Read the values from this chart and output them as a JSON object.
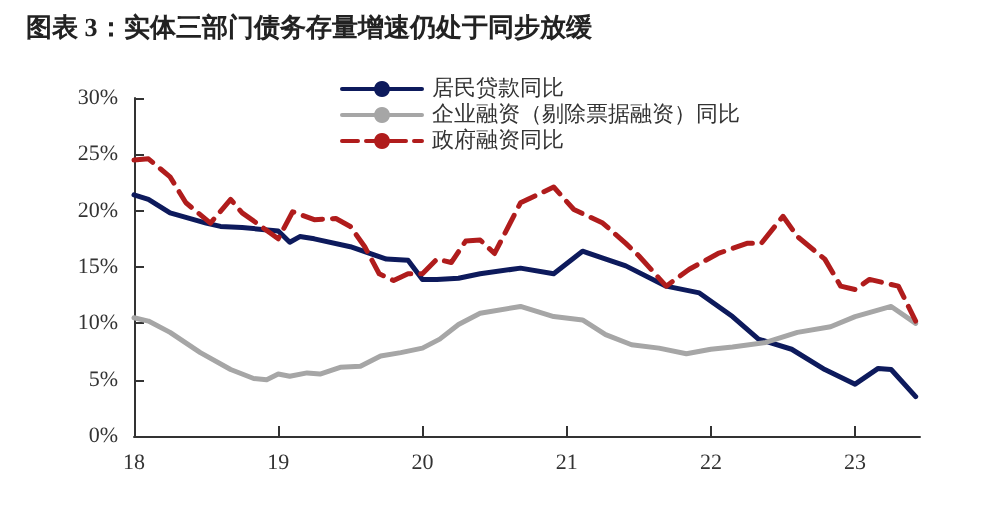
{
  "chart_data": {
    "type": "line",
    "title": "图表 3：实体三部门债务存量增速仍处于同步放缓",
    "xlim": [
      18,
      23.45
    ],
    "xticks": [
      18,
      19,
      20,
      21,
      22,
      23
    ],
    "ylim": [
      0,
      30
    ],
    "yticks": [
      {
        "value": 0,
        "label": "0%"
      },
      {
        "value": 5,
        "label": "5%"
      },
      {
        "value": 10,
        "label": "10%"
      },
      {
        "value": 15,
        "label": "15%"
      },
      {
        "value": 20,
        "label": "20%"
      },
      {
        "value": 25,
        "label": "25%"
      },
      {
        "value": 30,
        "label": "30%"
      }
    ],
    "grid": false,
    "legend": "top",
    "marker": "none",
    "series": [
      {
        "name": "居民贷款同比",
        "color": "#0d1a5c",
        "line_style": "solid",
        "x": [
          18,
          18.1,
          18.25,
          18.5,
          18.6,
          18.75,
          19,
          19.08,
          19.15,
          19.25,
          19.5,
          19.75,
          19.9,
          20,
          20.1,
          20.25,
          20.4,
          20.68,
          20.91,
          21.11,
          21.41,
          21.69,
          21.92,
          22.15,
          22.33,
          22.56,
          22.79,
          23,
          23.16,
          23.25,
          23.42
        ],
        "values": [
          21.4,
          21,
          19.8,
          18.9,
          18.6,
          18.5,
          18.2,
          17.2,
          17.7,
          17.5,
          16.8,
          15.7,
          15.6,
          13.9,
          13.9,
          14,
          14.4,
          14.9,
          14.4,
          16.4,
          15.1,
          13.3,
          12.7,
          10.6,
          8.6,
          7.7,
          5.9,
          4.6,
          6,
          5.9,
          3.5
        ]
      },
      {
        "name": "企业融资（剔除票据融资）同比",
        "color": "#a6a6a6",
        "line_style": "solid",
        "x": [
          18,
          18.1,
          18.25,
          18.46,
          18.67,
          18.83,
          18.92,
          19,
          19.08,
          19.2,
          19.29,
          19.43,
          19.57,
          19.71,
          19.85,
          20,
          20.12,
          20.25,
          20.4,
          20.68,
          20.91,
          21.11,
          21.27,
          21.45,
          21.64,
          21.83,
          22,
          22.15,
          22.38,
          22.6,
          22.83,
          23,
          23.25,
          23.42
        ],
        "values": [
          10.5,
          10.2,
          9.2,
          7.4,
          5.9,
          5.1,
          5,
          5.5,
          5.3,
          5.6,
          5.5,
          6.1,
          6.2,
          7.1,
          7.4,
          7.8,
          8.6,
          9.9,
          10.9,
          11.5,
          10.6,
          10.3,
          9,
          8.1,
          7.8,
          7.3,
          7.7,
          7.9,
          8.3,
          9.2,
          9.7,
          10.6,
          11.5,
          10
        ]
      },
      {
        "name": "政府融资同比",
        "color": "#b01c1c",
        "line_style": "dashed",
        "x": [
          18,
          18.1,
          18.25,
          18.36,
          18.53,
          18.67,
          18.75,
          18.85,
          19,
          19.1,
          19.25,
          19.4,
          19.5,
          19.6,
          19.7,
          19.8,
          19.9,
          20,
          20.1,
          20.2,
          20.3,
          20.4,
          20.5,
          20.68,
          20.91,
          21.05,
          21.25,
          21.41,
          21.5,
          21.69,
          21.85,
          22.05,
          22.25,
          22.35,
          22.5,
          22.6,
          22.79,
          22.9,
          23,
          23.1,
          23.3,
          23.42
        ],
        "values": [
          24.5,
          24.6,
          23,
          20.7,
          18.9,
          21,
          19.8,
          18.9,
          17.5,
          19.9,
          19.2,
          19.3,
          18.6,
          16.8,
          14.4,
          13.8,
          14.4,
          14.4,
          15.7,
          15.4,
          17.3,
          17.4,
          16.2,
          20.7,
          22.1,
          20.1,
          18.9,
          17.1,
          16,
          13.3,
          14.8,
          16.2,
          17.1,
          17.1,
          19.5,
          17.7,
          15.7,
          13.3,
          13,
          13.9,
          13.3,
          10.2
        ]
      }
    ]
  }
}
